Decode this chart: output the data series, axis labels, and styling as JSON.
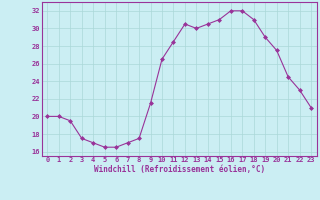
{
  "x": [
    0,
    1,
    2,
    3,
    4,
    5,
    6,
    7,
    8,
    9,
    10,
    11,
    12,
    13,
    14,
    15,
    16,
    17,
    18,
    19,
    20,
    21,
    22,
    23
  ],
  "y": [
    20,
    20,
    19.5,
    17.5,
    17,
    16.5,
    16.5,
    17,
    17.5,
    21.5,
    26.5,
    28.5,
    30.5,
    30,
    30.5,
    31,
    32,
    32,
    31,
    29,
    27.5,
    24.5,
    23,
    21
  ],
  "line_color": "#993399",
  "marker": "D",
  "marker_size": 2.0,
  "bg_color": "#cbeef3",
  "grid_color": "#aad8d8",
  "xlabel": "Windchill (Refroidissement éolien,°C)",
  "xlabel_color": "#993399",
  "tick_color": "#993399",
  "spine_color": "#993399",
  "xlim": [
    -0.5,
    23.5
  ],
  "ylim": [
    15.5,
    33.0
  ],
  "yticks": [
    16,
    18,
    20,
    22,
    24,
    26,
    28,
    30,
    32
  ],
  "xtick_labels": [
    "0",
    "1",
    "2",
    "3",
    "4",
    "5",
    "6",
    "7",
    "8",
    "9",
    "10",
    "11",
    "12",
    "13",
    "14",
    "15",
    "16",
    "17",
    "18",
    "19",
    "20",
    "21",
    "22",
    "23"
  ],
  "tick_fontsize": 5.0,
  "xlabel_fontsize": 5.5
}
